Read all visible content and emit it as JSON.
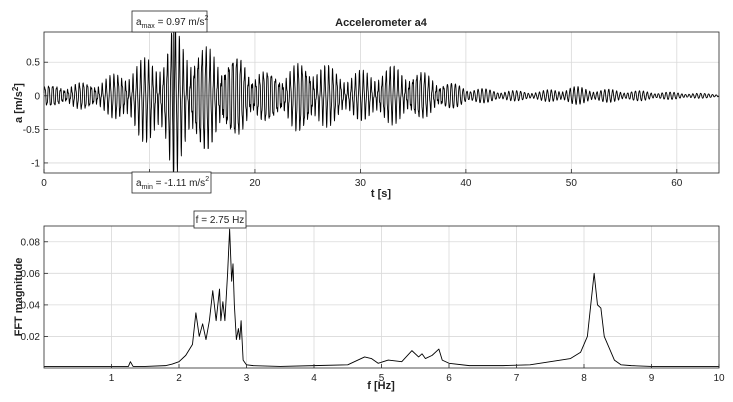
{
  "chart_data": [
    {
      "type": "line",
      "title": "Accelerometer a4",
      "xlabel": "t [s]",
      "ylabel_main": "a [m/s",
      "ylabel_sup": "2",
      "ylabel_close": "]",
      "xlim": [
        0,
        64
      ],
      "ylim": [
        -1.15,
        0.95
      ],
      "x_ticks": [
        0,
        10,
        20,
        30,
        40,
        50,
        60
      ],
      "y_ticks": [
        -1,
        -0.5,
        0,
        0.5
      ],
      "grid": true,
      "legend": "none",
      "series_color": "#000000",
      "envelope": {
        "t": [
          0,
          3,
          6,
          8.5,
          10,
          11.5,
          12.3,
          13,
          15,
          17,
          18.5,
          20,
          22,
          24,
          25.5,
          27,
          29,
          31,
          33,
          35,
          38,
          41,
          44,
          47,
          50,
          53,
          56,
          59,
          62,
          64
        ],
        "max": [
          0.15,
          0.18,
          0.25,
          0.42,
          0.52,
          0.6,
          0.97,
          0.8,
          0.68,
          0.62,
          0.58,
          0.4,
          0.34,
          0.45,
          0.5,
          0.4,
          0.3,
          0.35,
          0.4,
          0.38,
          0.22,
          0.12,
          0.08,
          0.07,
          0.14,
          0.1,
          0.08,
          0.06,
          0.04,
          0.03
        ],
        "min": [
          -0.15,
          -0.18,
          -0.25,
          -0.5,
          -0.65,
          -0.75,
          -1.11,
          -0.9,
          -0.78,
          -0.68,
          -0.58,
          -0.42,
          -0.36,
          -0.5,
          -0.52,
          -0.4,
          -0.3,
          -0.35,
          -0.38,
          -0.36,
          -0.22,
          -0.12,
          -0.08,
          -0.07,
          -0.13,
          -0.1,
          -0.08,
          -0.06,
          -0.04,
          -0.03
        ]
      },
      "annotations": [
        {
          "main": "a",
          "sub": "max",
          "mid": " = 0.97 m/s",
          "sup": "2",
          "at_t": 12.3,
          "at_a": 0.97
        },
        {
          "main": "a",
          "sub": "min",
          "mid": " = -1.11 m/s",
          "sup": "2",
          "at_t": 12.3,
          "at_a": -1.11
        }
      ]
    },
    {
      "type": "line",
      "title": "",
      "xlabel": "f [Hz]",
      "ylabel": "FFT magnitude",
      "xlim": [
        0,
        10
      ],
      "ylim": [
        0,
        0.09
      ],
      "x_ticks": [
        1,
        2,
        3,
        4,
        5,
        6,
        7,
        8,
        9,
        10
      ],
      "y_ticks": [
        0.02,
        0.04,
        0.06,
        0.08
      ],
      "grid": true,
      "legend": "none",
      "series_color": "#000000",
      "series": {
        "x": [
          0.0,
          0.5,
          1.0,
          1.25,
          1.28,
          1.32,
          1.5,
          1.8,
          1.9,
          2.0,
          2.1,
          2.2,
          2.25,
          2.3,
          2.35,
          2.4,
          2.45,
          2.5,
          2.55,
          2.6,
          2.62,
          2.65,
          2.68,
          2.7,
          2.72,
          2.75,
          2.78,
          2.8,
          2.82,
          2.85,
          2.88,
          2.9,
          2.92,
          2.95,
          3.0,
          3.1,
          3.5,
          4.0,
          4.5,
          4.75,
          4.85,
          4.95,
          5.1,
          5.3,
          5.45,
          5.55,
          5.6,
          5.65,
          5.75,
          5.85,
          5.9,
          6.0,
          6.3,
          6.8,
          7.2,
          7.5,
          7.8,
          7.95,
          8.05,
          8.1,
          8.15,
          8.2,
          8.25,
          8.3,
          8.35,
          8.45,
          8.55,
          8.7,
          9.0,
          9.5,
          10.0
        ],
        "y": [
          0.001,
          0.001,
          0.001,
          0.001,
          0.004,
          0.001,
          0.001,
          0.0015,
          0.0025,
          0.004,
          0.008,
          0.015,
          0.035,
          0.02,
          0.028,
          0.018,
          0.03,
          0.049,
          0.03,
          0.05,
          0.03,
          0.042,
          0.03,
          0.045,
          0.06,
          0.088,
          0.055,
          0.066,
          0.04,
          0.018,
          0.025,
          0.018,
          0.03,
          0.005,
          0.002,
          0.0015,
          0.001,
          0.0015,
          0.002,
          0.007,
          0.006,
          0.003,
          0.005,
          0.004,
          0.011,
          0.007,
          0.009,
          0.006,
          0.008,
          0.012,
          0.005,
          0.003,
          0.0015,
          0.0015,
          0.002,
          0.004,
          0.006,
          0.01,
          0.02,
          0.04,
          0.06,
          0.04,
          0.038,
          0.02,
          0.015,
          0.005,
          0.002,
          0.0015,
          0.001,
          0.001,
          0.001
        ]
      },
      "annotations": [
        {
          "text": "f = 2.75 Hz",
          "at_f": 2.75,
          "at_mag": 0.088
        }
      ]
    }
  ]
}
